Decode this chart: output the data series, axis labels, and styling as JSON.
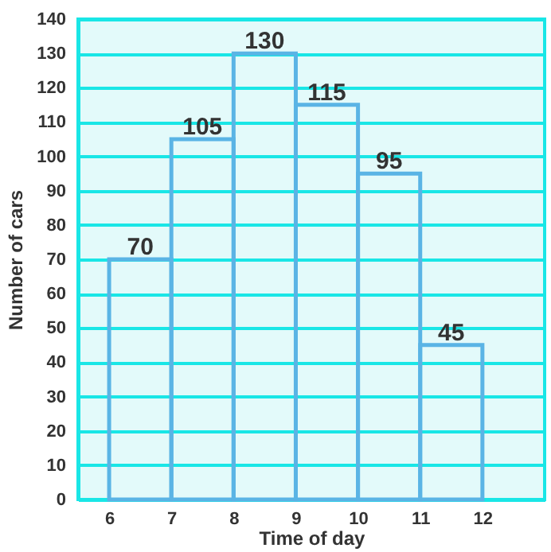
{
  "chart_data": {
    "type": "histogram",
    "xlabel": "Time of day",
    "ylabel": "Number of cars",
    "bins": [
      6,
      7,
      8,
      9,
      10,
      11,
      12
    ],
    "values": [
      70,
      105,
      130,
      115,
      95,
      45
    ],
    "color": "#5ab4e5",
    "xlim": [
      5.5,
      13
    ],
    "xticks": [
      6,
      7,
      8,
      9,
      10,
      11,
      12
    ],
    "ylim": [
      0,
      140
    ],
    "yticks": [
      0,
      10,
      20,
      30,
      40,
      50,
      60,
      70,
      80,
      90,
      100,
      110,
      120,
      130,
      140
    ],
    "grid": "y",
    "data_labels": true
  }
}
